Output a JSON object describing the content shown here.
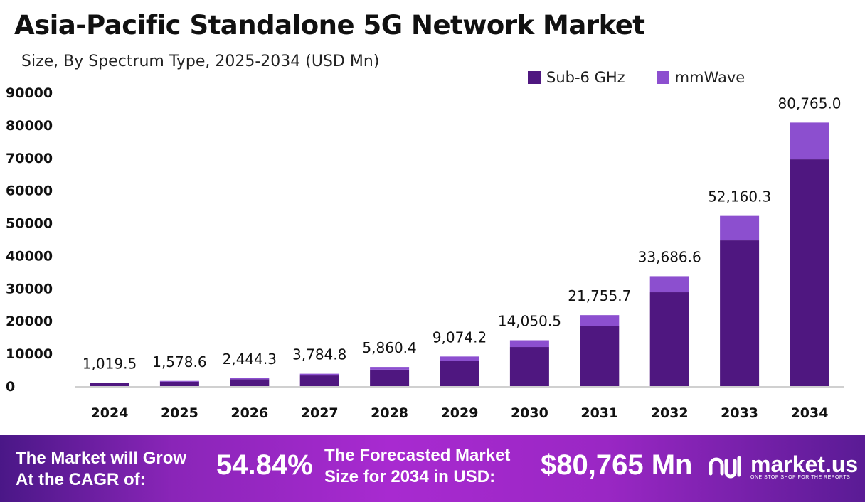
{
  "chart_data": {
    "type": "bar",
    "stacked": true,
    "title": "Asia-Pacific Standalone 5G Network Market",
    "subtitle": "Size, By Spectrum Type, 2025-2034 (USD Mn)",
    "categories": [
      "2024",
      "2025",
      "2026",
      "2027",
      "2028",
      "2029",
      "2030",
      "2031",
      "2032",
      "2033",
      "2034"
    ],
    "series": [
      {
        "name": "Sub-6 GHz",
        "color": "#4f1780",
        "values": [
          880,
          1360,
          2100,
          3255,
          5040,
          7800,
          11980,
          18520,
          28760,
          44660,
          69500
        ]
      },
      {
        "name": "mmWave",
        "color": "#8c4fcf",
        "values": [
          139.5,
          218.6,
          344.3,
          529.8,
          820.4,
          1274.2,
          2070.5,
          3235.7,
          4926.6,
          7500.3,
          11265.0
        ]
      }
    ],
    "totals_labels": [
      "1,019.5",
      "1,578.6",
      "2,444.3",
      "3,784.8",
      "5,860.4",
      "9,074.2",
      "14,050.5",
      "21,755.7",
      "33,686.6",
      "52,160.3",
      "80,765.0"
    ],
    "totals": [
      1019.5,
      1578.6,
      2444.3,
      3784.8,
      5860.4,
      9074.2,
      14050.5,
      21755.7,
      33686.6,
      52160.3,
      80765.0
    ],
    "yticks": [
      "0",
      "10000",
      "20000",
      "30000",
      "40000",
      "50000",
      "60000",
      "70000",
      "80000",
      "90000"
    ],
    "ylim": [
      0,
      90000
    ],
    "grid": false,
    "legend": "top-right"
  },
  "footer": {
    "cagr_text": "The Market will Grow At the CAGR of:",
    "cagr_line1": "The Market will Grow",
    "cagr_line2": "At the CAGR of:",
    "cagr_value": "54.84%",
    "forecast_line1": "The Forecasted Market",
    "forecast_line2": "Size for 2034 in USD:",
    "forecast_value": "$80,765 Mn",
    "logo_text": "market.us",
    "logo_tagline": "ONE STOP SHOP FOR THE REPORTS"
  }
}
